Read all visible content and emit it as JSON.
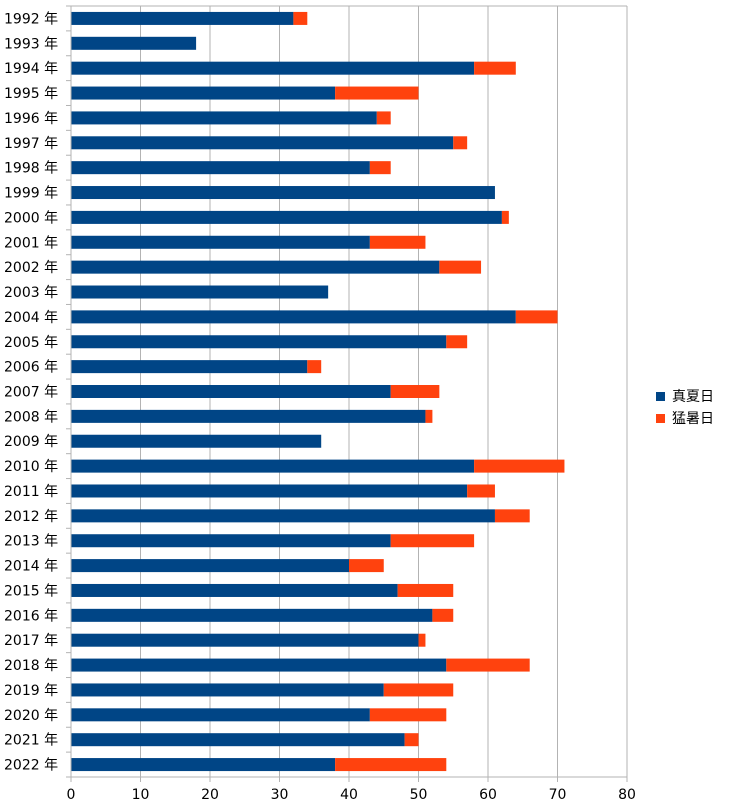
{
  "chart_data": {
    "type": "bar",
    "orientation": "horizontal",
    "stacked": true,
    "categories": [
      "1992 年",
      "1993 年",
      "1994 年",
      "1995 年",
      "1996 年",
      "1997 年",
      "1998 年",
      "1999 年",
      "2000 年",
      "2001 年",
      "2002 年",
      "2003 年",
      "2004 年",
      "2005 年",
      "2006 年",
      "2007 年",
      "2008 年",
      "2009 年",
      "2010 年",
      "2011 年",
      "2012 年",
      "2013 年",
      "2014 年",
      "2015 年",
      "2016 年",
      "2017 年",
      "2018 年",
      "2019 年",
      "2020 年",
      "2021 年",
      "2022 年"
    ],
    "series": [
      {
        "name": "真夏日",
        "color": "#004586",
        "values": [
          32,
          18,
          58,
          38,
          44,
          55,
          43,
          61,
          62,
          43,
          53,
          37,
          64,
          54,
          34,
          46,
          51,
          36,
          58,
          57,
          61,
          46,
          40,
          47,
          52,
          50,
          54,
          45,
          43,
          48,
          38
        ]
      },
      {
        "name": "猛暑日",
        "color": "#ff420e",
        "values": [
          2,
          0,
          6,
          12,
          2,
          2,
          3,
          0,
          1,
          8,
          6,
          0,
          6,
          3,
          2,
          7,
          1,
          0,
          13,
          4,
          5,
          12,
          5,
          8,
          3,
          1,
          12,
          10,
          11,
          2,
          16
        ]
      }
    ],
    "xlim": [
      0,
      80
    ],
    "xticks": [
      0,
      10,
      20,
      30,
      40,
      50,
      60,
      70,
      80
    ],
    "grid": true,
    "legend_position": "right"
  }
}
